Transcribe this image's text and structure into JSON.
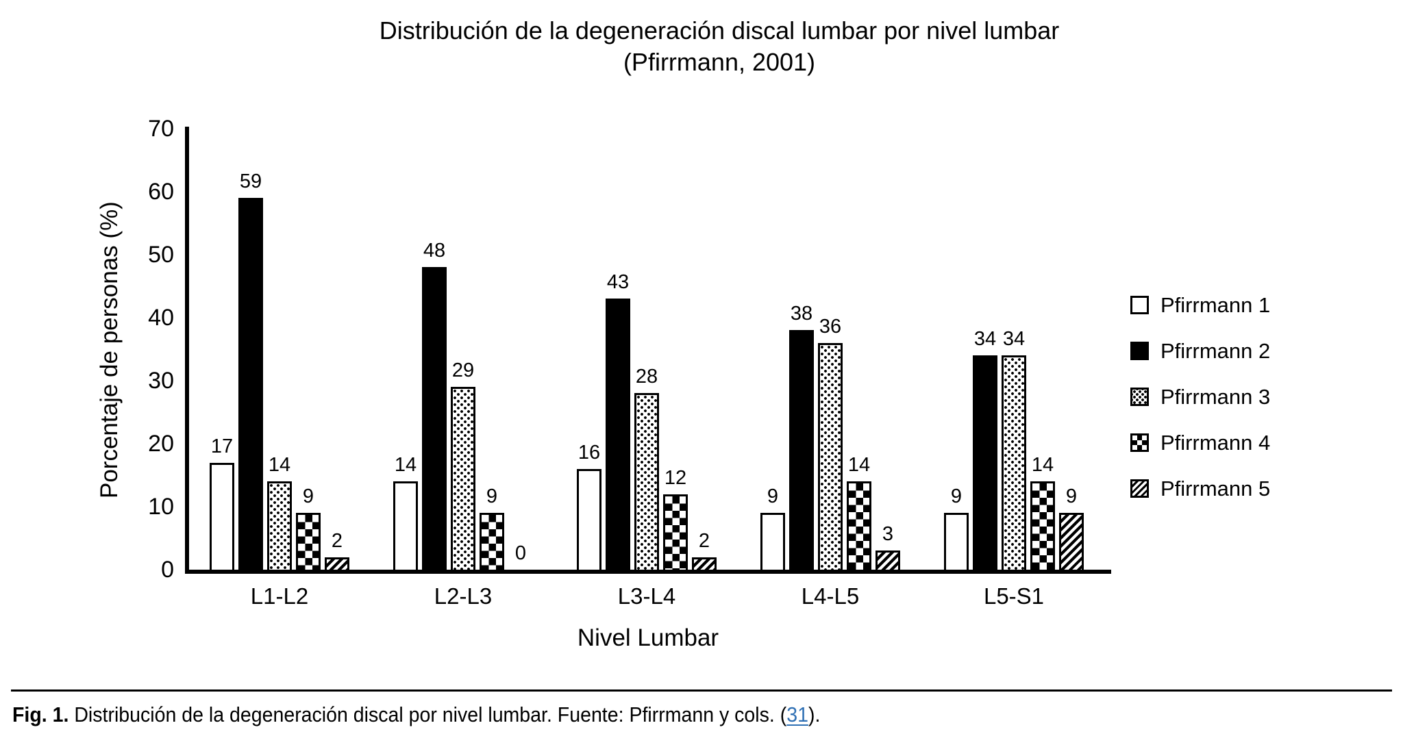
{
  "colors": {
    "foreground": "#000000",
    "background": "#ffffff",
    "link": "#2f70b4"
  },
  "chart_data": {
    "type": "bar",
    "title": "Distribución de la degeneración discal lumbar por nivel lumbar",
    "subtitle": "(Pfirrmann, 2001)",
    "xlabel": "Nivel Lumbar",
    "ylabel": "Porcentaje de personas (%)",
    "ylim": [
      0,
      70
    ],
    "ytick_step": 10,
    "yticks": [
      0,
      10,
      20,
      30,
      40,
      50,
      60,
      70
    ],
    "grid": false,
    "legend_position": "right",
    "categories": [
      "L1-L2",
      "L2-L3",
      "L3-L4",
      "L4-L5",
      "L5-S1"
    ],
    "series": [
      {
        "name": "Pfirrmann 1",
        "pattern": "solid-white",
        "values": [
          17,
          14,
          16,
          9,
          9
        ]
      },
      {
        "name": "Pfirrmann 2",
        "pattern": "solid-black",
        "values": [
          59,
          48,
          43,
          38,
          34
        ]
      },
      {
        "name": "Pfirrmann 3",
        "pattern": "dots",
        "values": [
          14,
          29,
          28,
          36,
          34
        ]
      },
      {
        "name": "Pfirrmann 4",
        "pattern": "checker",
        "values": [
          9,
          9,
          12,
          14,
          14
        ]
      },
      {
        "name": "Pfirrmann 5",
        "pattern": "diagonal",
        "values": [
          2,
          0,
          2,
          3,
          9
        ]
      }
    ],
    "bar_value_labels_shown": true
  },
  "caption": {
    "figure_label": "Fig. 1.",
    "text_before_link": " Distribución de la degeneración discal por nivel lumbar. Fuente: Pfirrmann y cols. (",
    "link_text": "31",
    "text_after_link": ")."
  }
}
